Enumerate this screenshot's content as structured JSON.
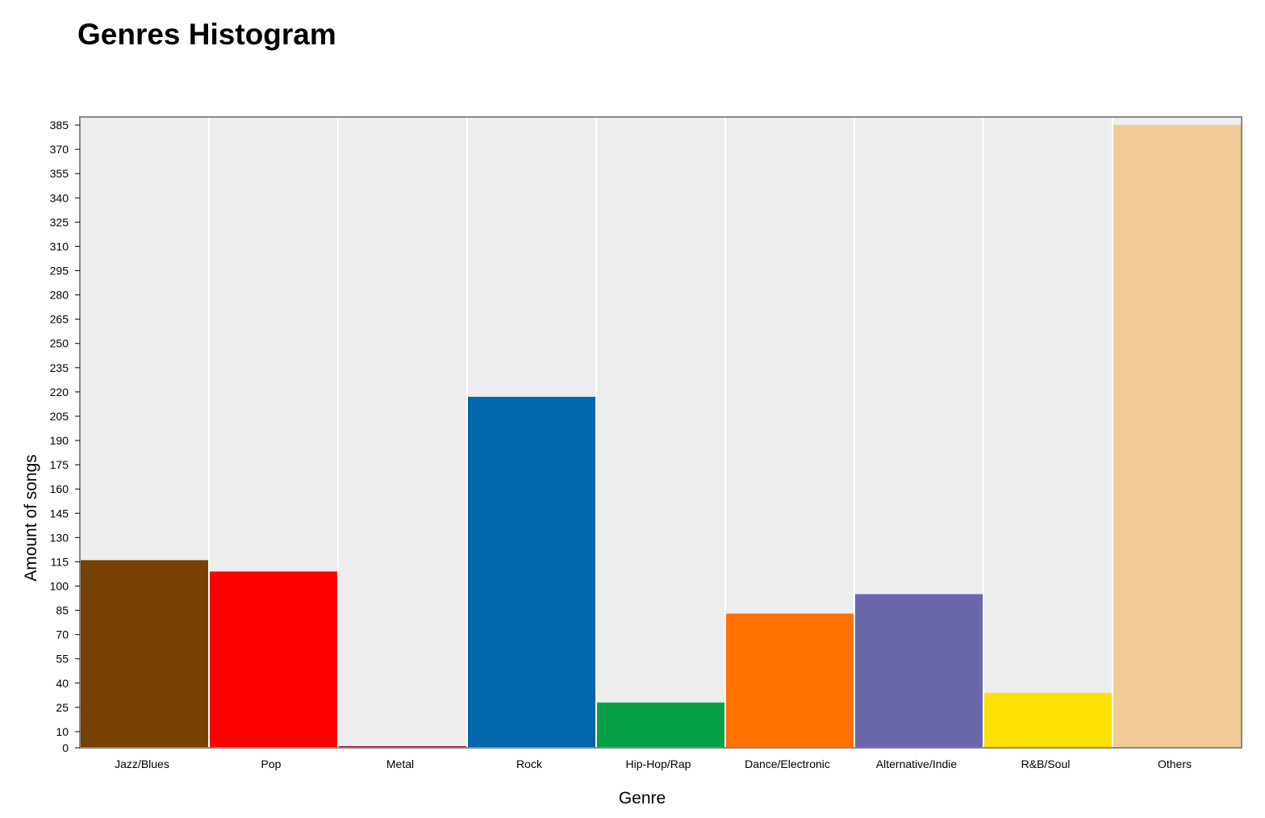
{
  "page": {
    "heading": "Genres Histogram"
  },
  "chart_data": {
    "type": "bar",
    "title": "Genres Histogram",
    "xlabel": "Genre",
    "ylabel": "Amount of songs",
    "categories": [
      "Jazz/Blues",
      "Pop",
      "Metal",
      "Rock",
      "Hip-Hop/Rap",
      "Dance/Electronic",
      "Alternative/Indie",
      "R&B/Soul",
      "Others"
    ],
    "values": [
      116,
      109,
      1,
      217,
      28,
      83,
      95,
      34,
      385
    ],
    "colors": [
      "#774101",
      "#ff0000",
      "#8b0a32",
      "#0066ad",
      "#06a047",
      "#ff7101",
      "#6966ac",
      "#fde101",
      "#f0cb93"
    ],
    "ylim": [
      0,
      390
    ],
    "yticks": [
      0,
      10,
      25,
      40,
      55,
      70,
      85,
      100,
      115,
      130,
      145,
      160,
      175,
      190,
      205,
      220,
      235,
      250,
      265,
      280,
      295,
      310,
      325,
      340,
      355,
      370,
      385
    ],
    "grid": true,
    "legend": "none",
    "background_color": "#ededed",
    "grid_color": "#ffffff"
  }
}
